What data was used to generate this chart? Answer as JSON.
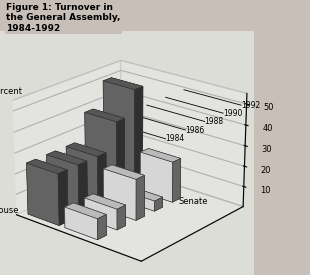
{
  "title": "Figure 1: Turnover in\nthe General Assembly,\n1984-1992",
  "percent_label": "Percent",
  "house_label": "House",
  "senate_label": "Senate",
  "yticks": [
    10,
    20,
    30,
    40,
    50
  ],
  "years": [
    "1984",
    "1986",
    "1988",
    "1990",
    "1992"
  ],
  "house_values": [
    25,
    25,
    25,
    38,
    50
  ],
  "senate_values": [
    10,
    10,
    20,
    5,
    20
  ],
  "house_color": "#707070",
  "senate_color": "#f2f2f2",
  "background_color": "#c8c0b8",
  "plot_bg_color": "#ddddd8",
  "bar_width": 0.55,
  "bar_depth": 0.45,
  "elev": 22,
  "azim": -50
}
